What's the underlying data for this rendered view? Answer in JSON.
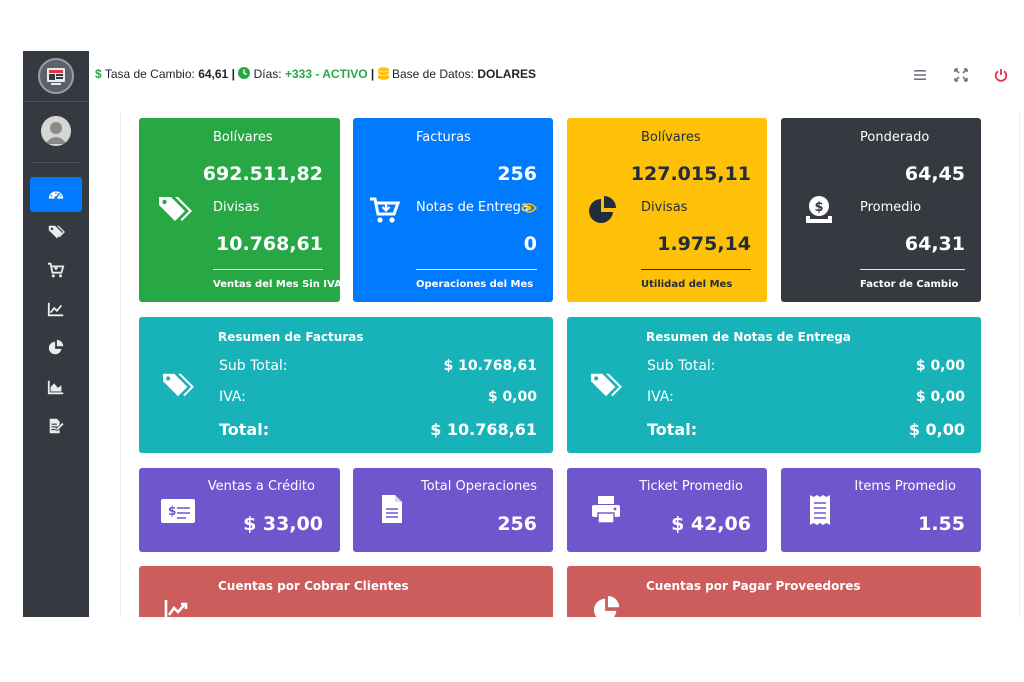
{
  "header": {
    "exchange_label": "Tasa de Cambio:",
    "exchange_value": "64,61",
    "sep1": "|",
    "days_label": "Días:",
    "days_value": "+333 - ACTIVO",
    "sep2": "|",
    "db_label": "Base de Datos:",
    "db_value": "DOLARES",
    "colors": {
      "green": "#28a745",
      "power": "#dc3545",
      "db_icon": "#ffc107"
    }
  },
  "sidebar": {
    "items": [
      {
        "icon": "dashboard-icon",
        "active": true
      },
      {
        "icon": "tags-icon",
        "active": false
      },
      {
        "icon": "cart-icon",
        "active": false
      },
      {
        "icon": "line-chart-icon",
        "active": false
      },
      {
        "icon": "pie-chart-icon",
        "active": false
      },
      {
        "icon": "area-chart-icon",
        "active": false
      },
      {
        "icon": "edit-document-icon",
        "active": false
      }
    ]
  },
  "cards_top": [
    {
      "label1": "Bolívares",
      "value1": "692.511,82",
      "label2": "Divisas",
      "value2": "10.768,61",
      "footer": "Ventas del Mes Sin IVA",
      "icon": "tags-icon",
      "color": "#28a745"
    },
    {
      "label1": "Facturas",
      "value1": "256",
      "label2": "Notas de Entrega",
      "value2": "0",
      "footer": "Operaciones del Mes",
      "icon": "cart-download-icon",
      "color": "#007bff"
    },
    {
      "label1": "Bolívares",
      "value1": "127.015,11",
      "label2": "Divisas",
      "value2": "1.975,14",
      "footer": "Utilidad del Mes",
      "icon": "pie-chart-icon",
      "color": "#ffc107"
    },
    {
      "label1": "Ponderado",
      "value1": "64,45",
      "label2": "Promedio",
      "value2": "64,31",
      "footer": "Factor de Cambio",
      "icon": "money-bag-icon",
      "color": "#343a40"
    }
  ],
  "summaries": [
    {
      "title": "Resumen de Facturas",
      "subtotal_label": "Sub Total:",
      "subtotal_value": "$ 10.768,61",
      "iva_label": "IVA:",
      "iva_value": "$ 0,00",
      "total_label": "Total:",
      "total_value": "$ 10.768,61"
    },
    {
      "title": "Resumen de Notas de Entrega",
      "subtotal_label": "Sub Total:",
      "subtotal_value": "$ 0,00",
      "iva_label": "IVA:",
      "iva_value": "$ 0,00",
      "total_label": "Total:",
      "total_value": "$ 0,00"
    }
  ],
  "cards_small": [
    {
      "label": "Ventas a Crédito",
      "value": "$ 33,00",
      "icon": "money-check-icon"
    },
    {
      "label": "Total Operaciones",
      "value": "256",
      "icon": "file-icon"
    },
    {
      "label": "Ticket Promedio",
      "value": "$ 42,06",
      "icon": "printer-icon"
    },
    {
      "label": "Items Promedio",
      "value": "1.55",
      "icon": "receipt-icon"
    }
  ],
  "cards_bottom": [
    {
      "title": "Cuentas por Cobrar Clientes",
      "icon": "line-chart-icon"
    },
    {
      "title": "Cuentas por Pagar Proveedores",
      "icon": "pie-chart-icon"
    }
  ]
}
